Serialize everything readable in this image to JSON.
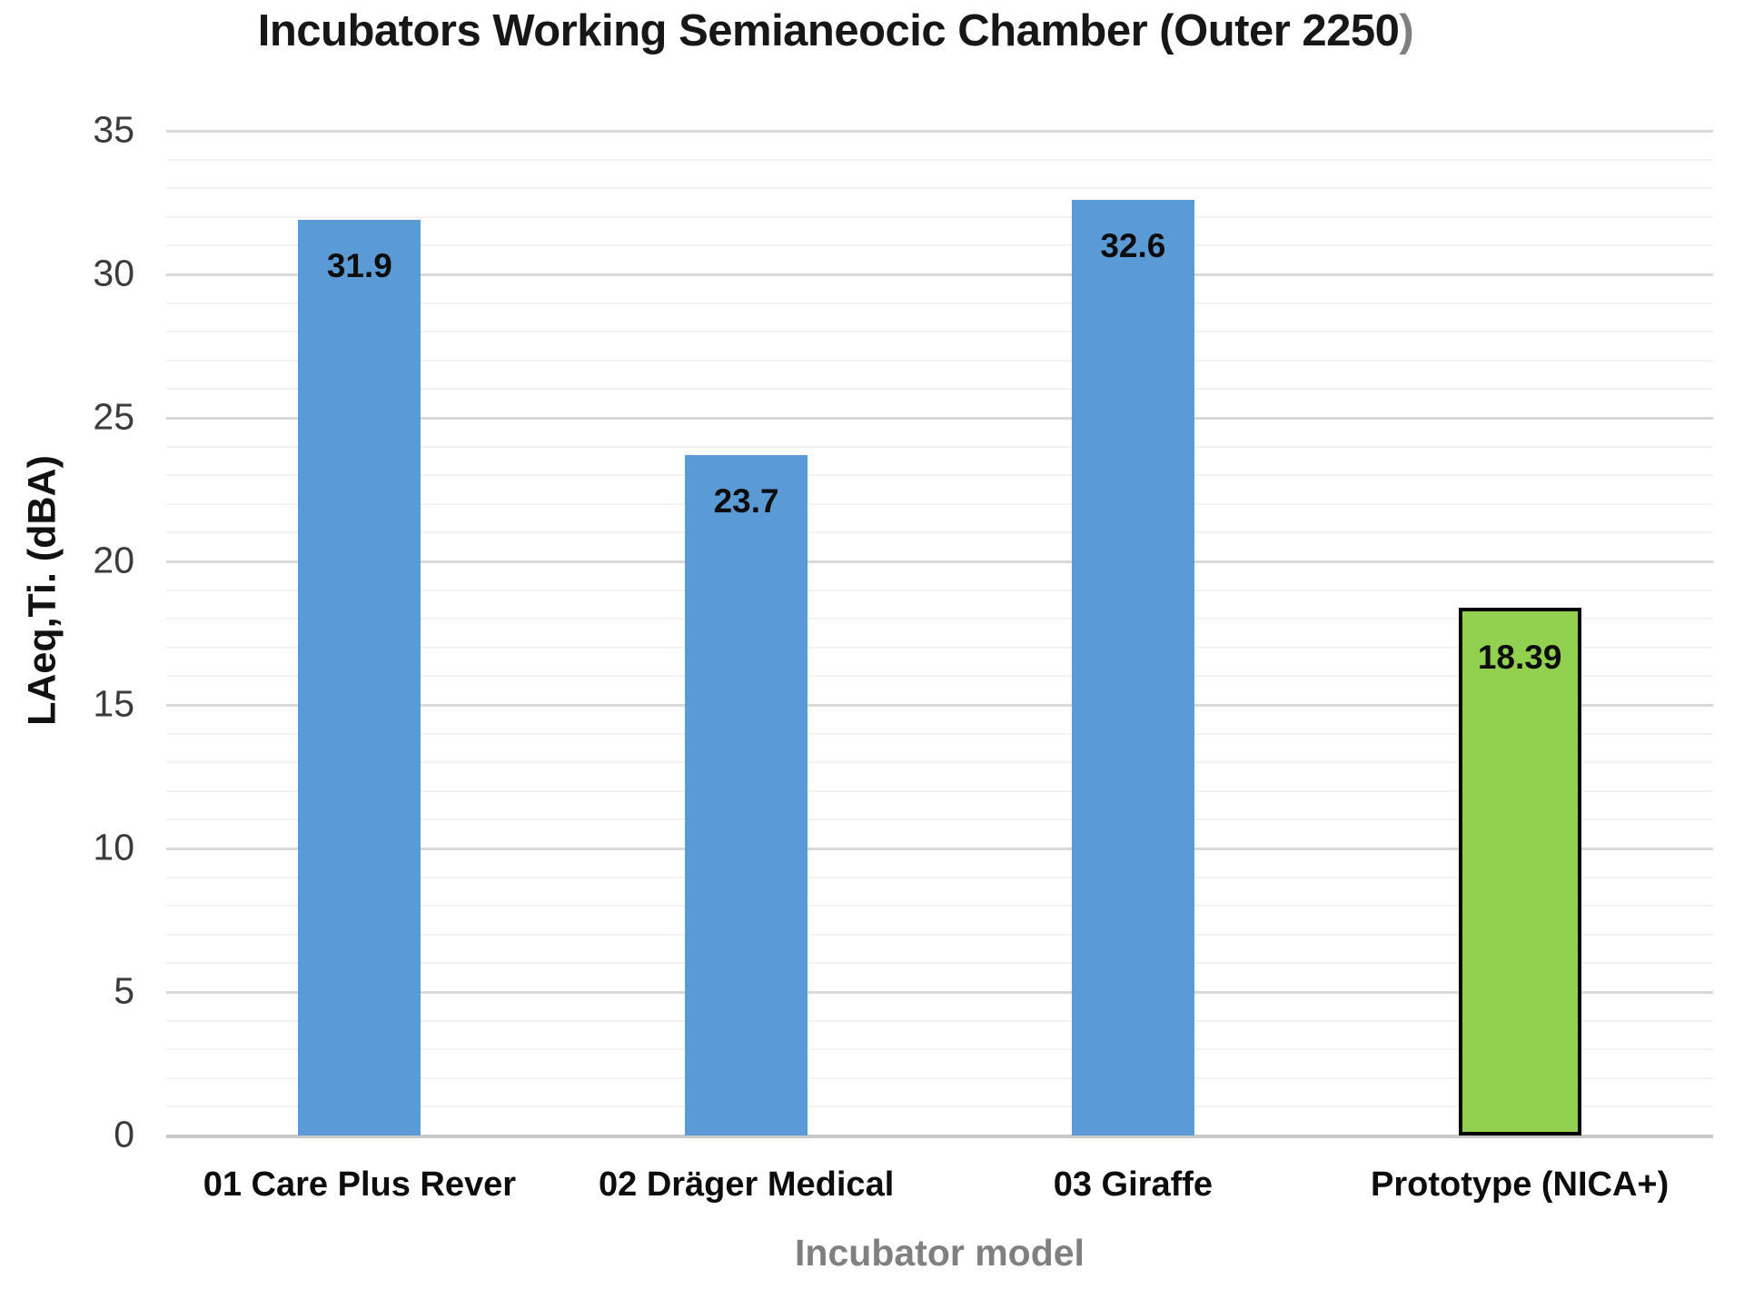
{
  "header": {
    "title_main": "Incubators Working Semianeocic Chamber (Outer 2250",
    "title_paren": ")"
  },
  "chart_data": {
    "type": "bar",
    "title": "Incubators Working Semianeocic Chamber (Outer 2250)",
    "xlabel": "Incubator model",
    "ylabel": "LAeq,Ti. (dBA)",
    "ylim": [
      0,
      35
    ],
    "ytick_step": 5,
    "minor_tick_step": 1,
    "ytick_labels": [
      "35",
      "30",
      "25",
      "20",
      "15",
      "10",
      "5",
      "0"
    ],
    "grid": "horizontal, major and minor lines, no vertical axis line",
    "legend": "none",
    "categories": [
      "01 Care Plus Rever",
      "02 Dräger Medical",
      "03 Giraffe",
      "Prototype (NICA+)"
    ],
    "values": [
      31.9,
      23.7,
      32.6,
      18.39
    ],
    "value_labels": [
      "31.9",
      "23.7",
      "32.6",
      "18.39"
    ],
    "bar_colors": [
      "#5B9BD5",
      "#5B9BD5",
      "#5B9BD5",
      "#92D050"
    ],
    "bar_border_colors": [
      "none",
      "none",
      "none",
      "#000000"
    ]
  },
  "colors": {
    "accent_blue": "#5B9BD5",
    "accent_green": "#92D050",
    "grid_major": "#d9d9d9",
    "grid_minor": "#f2f2f2",
    "baseline": "#c9c9c9",
    "tick_text": "#3b3b3b",
    "label_text": "#0d0d0d",
    "axis_title_gray": "#808080"
  }
}
